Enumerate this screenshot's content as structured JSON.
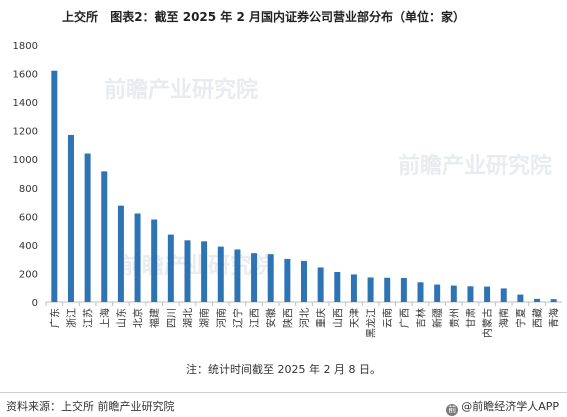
{
  "header": {
    "source_label": "上交所",
    "chart_title": "图表2：截至 2025 年 2 月国内证券公司营业部分布（单位：家）"
  },
  "note": "注：统计时间截至 2025 年 2 月 8 日。",
  "footer": {
    "source": "资料来源：上交所 前瞻产业研究院",
    "brand": "@前瞻经济学人APP"
  },
  "watermark": "前瞻产业研究院",
  "colors": {
    "bar": "#2e74b5",
    "axis": "#bfbfbf",
    "text": "#333333"
  },
  "chart_data": {
    "type": "bar",
    "title": "截至 2025 年 2 月国内证券公司营业部分布（单位：家）",
    "xlabel": "",
    "ylabel": "",
    "ylim": [
      0,
      1800
    ],
    "yticks": [
      0,
      200,
      400,
      600,
      800,
      1000,
      1200,
      1400,
      1600,
      1800
    ],
    "grid": false,
    "categories": [
      "广东",
      "浙江",
      "江苏",
      "上海",
      "山东",
      "北京",
      "福建",
      "四川",
      "湖北",
      "湖南",
      "河南",
      "辽宁",
      "江西",
      "安徽",
      "陕西",
      "河北",
      "重庆",
      "山西",
      "天津",
      "黑龙江",
      "云南",
      "广西",
      "吉林",
      "新疆",
      "贵州",
      "甘肃",
      "内蒙古",
      "海南",
      "宁夏",
      "西藏",
      "青海"
    ],
    "values": [
      1620,
      1170,
      1040,
      915,
      675,
      620,
      578,
      472,
      432,
      425,
      388,
      368,
      342,
      335,
      302,
      288,
      242,
      210,
      193,
      172,
      170,
      168,
      138,
      122,
      115,
      110,
      108,
      95,
      52,
      22,
      20
    ]
  }
}
